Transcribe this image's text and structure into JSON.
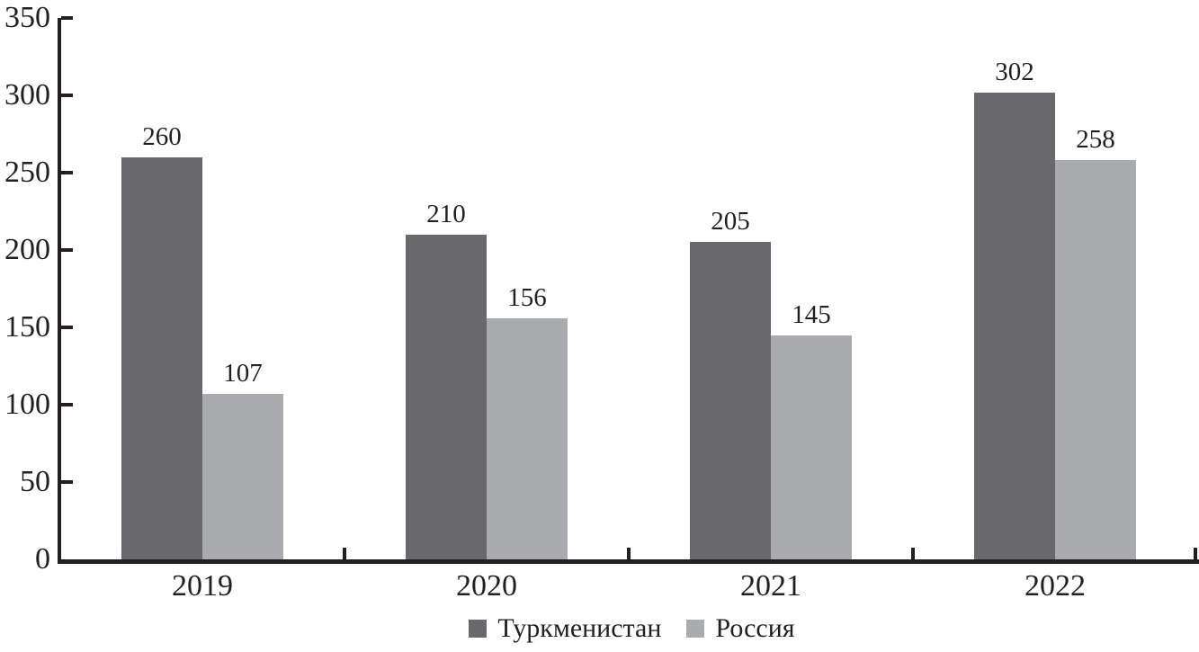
{
  "chart_data": {
    "type": "bar",
    "title": "",
    "xlabel": "",
    "ylabel": "",
    "categories": [
      "2019",
      "2020",
      "2021",
      "2022"
    ],
    "series": [
      {
        "name": "Туркменистан",
        "color": "#69696d",
        "values": [
          260,
          210,
          205,
          302
        ]
      },
      {
        "name": "Россия",
        "color": "#a9abae",
        "values": [
          107,
          156,
          145,
          258
        ]
      }
    ],
    "ylim": [
      0,
      350
    ],
    "yticks": [
      0,
      50,
      100,
      150,
      200,
      250,
      300,
      350
    ],
    "grid": false,
    "bar_value_labels": true,
    "legend_position": "bottom",
    "axis_color": "#231f20",
    "background_color": "#ffffff"
  }
}
